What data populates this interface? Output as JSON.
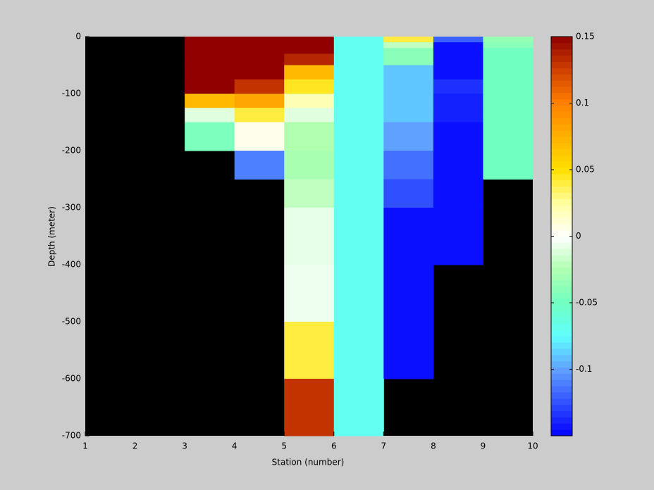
{
  "chart_data": {
    "type": "heatmap",
    "xlabel": "Station (number)",
    "ylabel": "Depth (meter)",
    "x_edges": [
      1,
      2,
      3,
      4,
      5,
      6,
      7,
      8,
      9,
      10
    ],
    "y_edges": [
      0,
      -10,
      -20,
      -30,
      -50,
      -75,
      -100,
      -125,
      -150,
      -200,
      -250,
      -300,
      -400,
      -500,
      -600,
      -700
    ],
    "values": [
      [
        null,
        null,
        0.15,
        0.15,
        0.15,
        -0.07,
        0.04,
        -0.12,
        -0.035
      ],
      [
        null,
        null,
        0.15,
        0.15,
        0.15,
        -0.07,
        -0.02,
        -0.145,
        -0.04
      ],
      [
        null,
        null,
        0.15,
        0.15,
        0.15,
        -0.07,
        -0.04,
        -0.145,
        -0.05
      ],
      [
        null,
        null,
        0.15,
        0.15,
        0.135,
        -0.07,
        -0.04,
        -0.145,
        -0.05
      ],
      [
        null,
        null,
        0.15,
        0.15,
        0.07,
        -0.07,
        -0.09,
        -0.145,
        -0.05
      ],
      [
        null,
        null,
        0.15,
        0.13,
        0.045,
        -0.07,
        -0.09,
        -0.135,
        -0.05
      ],
      [
        null,
        null,
        0.07,
        0.08,
        0.02,
        -0.07,
        -0.09,
        -0.14,
        -0.05
      ],
      [
        null,
        null,
        -0.01,
        0.04,
        -0.01,
        -0.07,
        -0.09,
        -0.14,
        -0.05
      ],
      [
        null,
        null,
        -0.045,
        0.005,
        -0.025,
        -0.07,
        -0.1,
        -0.145,
        -0.05
      ],
      [
        null,
        null,
        null,
        -0.11,
        -0.028,
        -0.07,
        -0.115,
        -0.145,
        -0.05
      ],
      [
        null,
        null,
        null,
        null,
        -0.02,
        -0.07,
        -0.125,
        -0.145,
        null
      ],
      [
        null,
        null,
        null,
        null,
        -0.008,
        -0.07,
        -0.145,
        -0.145,
        null
      ],
      [
        null,
        null,
        null,
        null,
        -0.005,
        -0.07,
        -0.145,
        null,
        null
      ],
      [
        null,
        null,
        null,
        null,
        0.04,
        -0.07,
        -0.145,
        null,
        null
      ],
      [
        null,
        null,
        null,
        null,
        0.13,
        -0.07,
        null,
        null,
        null
      ]
    ],
    "xlim": [
      1,
      10
    ],
    "xticks": [
      1,
      2,
      3,
      4,
      5,
      6,
      7,
      8,
      9,
      10
    ],
    "ylim": [
      -700,
      0
    ],
    "yticks": [
      0,
      -100,
      -200,
      -300,
      -400,
      -500,
      -600,
      -700
    ],
    "clim": [
      -0.15,
      0.15
    ],
    "cticks": [
      0.15,
      0.1,
      0.05,
      0,
      -0.05,
      -0.1
    ],
    "colormap": [
      "#0000ff",
      "#3050ff",
      "#60a0ff",
      "#60ffff",
      "#70ffc0",
      "#b0ffb0",
      "#ffffff",
      "#ffffa0",
      "#ffe000",
      "#ffb000",
      "#ff8000",
      "#d04000",
      "#900000"
    ],
    "missing_color": "#000000"
  }
}
